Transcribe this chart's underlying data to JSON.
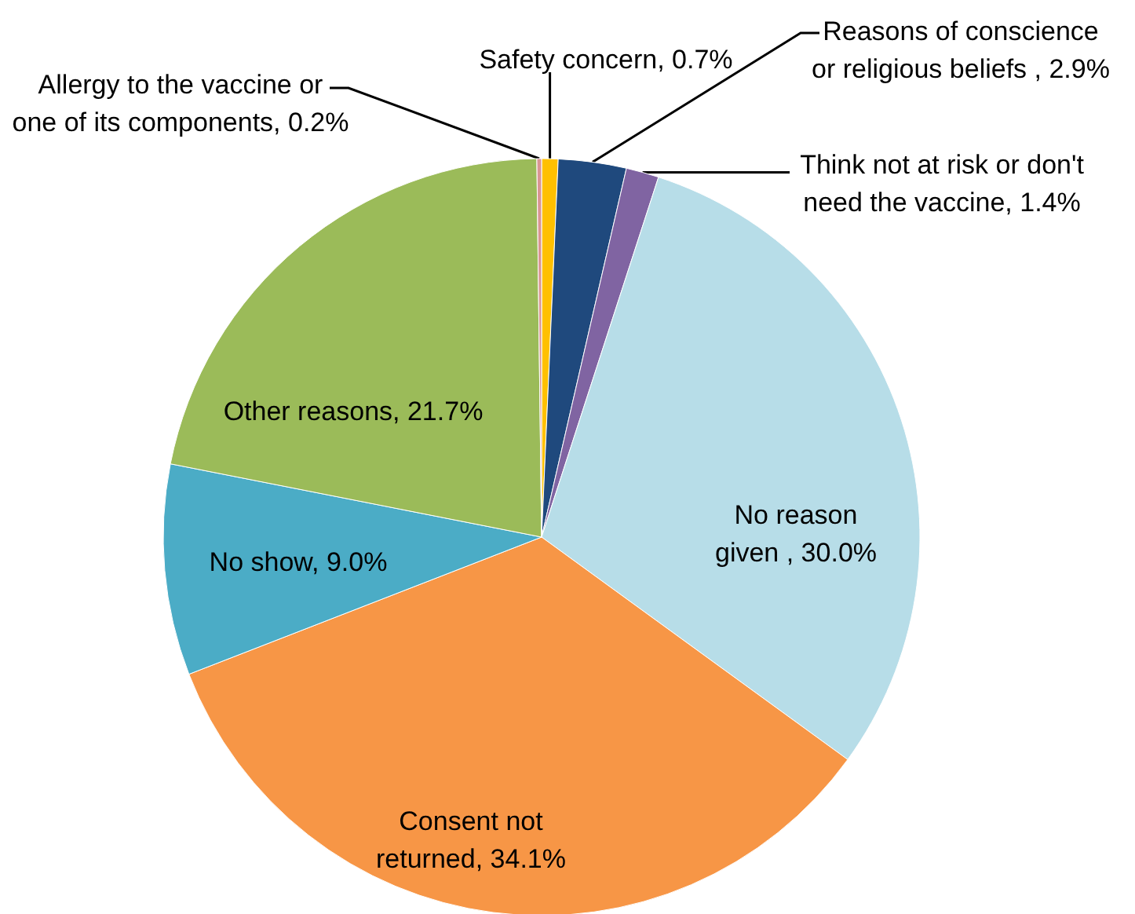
{
  "chart_data": {
    "type": "pie",
    "categories": [
      "Safety concern",
      "Reasons of conscience or religious beliefs ",
      "Think not at risk or don't need the vaccine",
      "No reason given ",
      "Consent not returned",
      "No show",
      "Other reasons",
      "Allergy to the vaccine or one of its components"
    ],
    "values": [
      0.7,
      2.9,
      1.4,
      30.0,
      34.1,
      9.0,
      21.7,
      0.2
    ],
    "colors": [
      "#ffc000",
      "#1f497d",
      "#8064a2",
      "#b7dde8",
      "#f79646",
      "#4bacc6",
      "#9bbb59",
      "#d99694"
    ],
    "value_labels": [
      "0.7%",
      "2.9%",
      "1.4%",
      "30.0%",
      "34.1%",
      "9.0%",
      "21.7%",
      "0.2%"
    ]
  }
}
